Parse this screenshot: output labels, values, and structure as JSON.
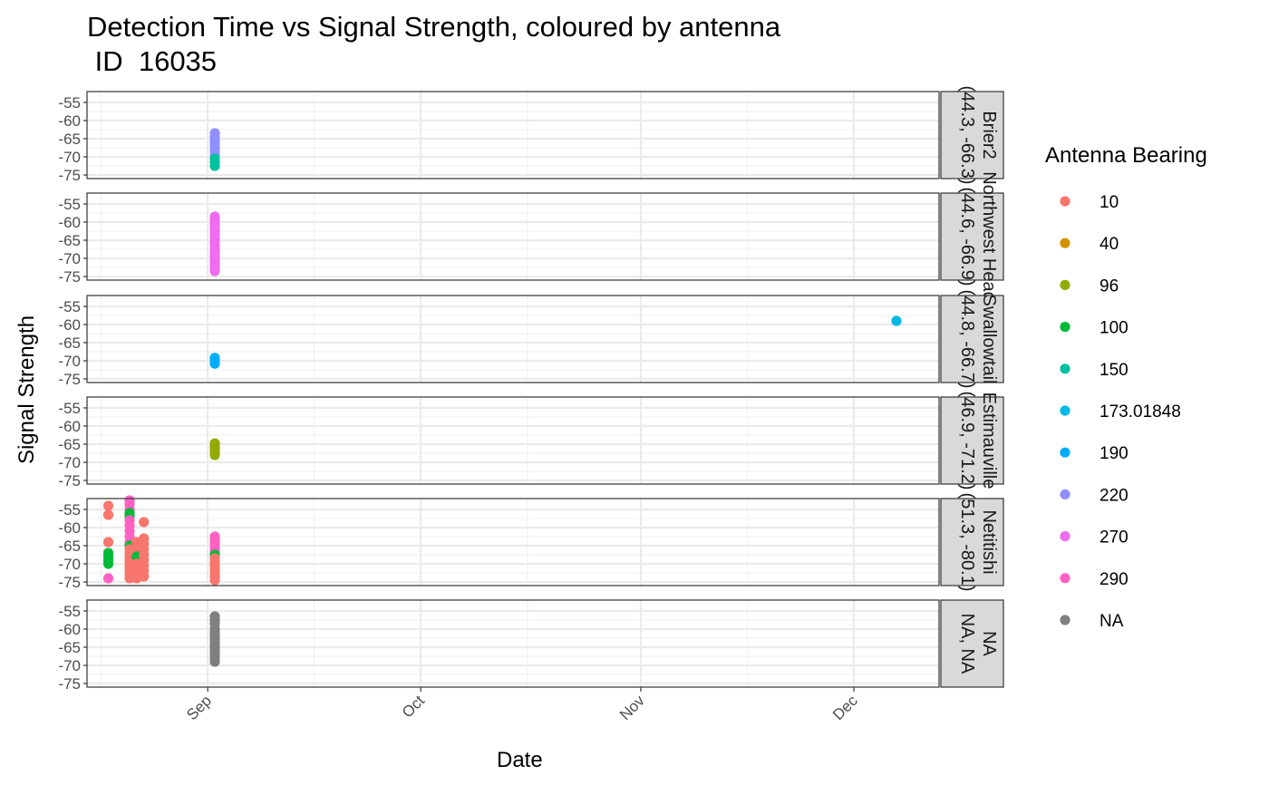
{
  "chart_data": {
    "type": "scatter",
    "title": "Detection Time vs Signal Strength, coloured by antenna",
    "subtitle": " ID  16035",
    "xlabel": "Date",
    "ylabel": "Signal Strength",
    "x_ticks": [
      {
        "label": "Sep",
        "date": "2023-09-01"
      },
      {
        "label": "Oct",
        "date": "2023-10-01"
      },
      {
        "label": "Nov",
        "date": "2023-11-01"
      },
      {
        "label": "Dec",
        "date": "2023-12-01"
      }
    ],
    "xlim": [
      "2023-08-15",
      "2023-12-13"
    ],
    "y_ticks": [
      -55,
      -60,
      -65,
      -70,
      -75
    ],
    "ylim": [
      -76,
      -52
    ],
    "grid": true,
    "legend": {
      "title": "Antenna Bearing",
      "position": "right",
      "entries": [
        {
          "label": "10",
          "color": "#F8766D"
        },
        {
          "label": "40",
          "color": "#D39200"
        },
        {
          "label": "96",
          "color": "#93AA00"
        },
        {
          "label": "100",
          "color": "#00BA38"
        },
        {
          "label": "150",
          "color": "#00C19F"
        },
        {
          "label": "173.01848",
          "color": "#00B9E3"
        },
        {
          "label": "190",
          "color": "#00ADFA"
        },
        {
          "label": "220",
          "color": "#8F8FFF"
        },
        {
          "label": "270",
          "color": "#EF6BF0"
        },
        {
          "label": "290",
          "color": "#FF61C3"
        },
        {
          "label": "NA",
          "color": "#7F7F7F"
        }
      ]
    },
    "panels": [
      {
        "strip": [
          "Brier2",
          "(44.3, -66.3)"
        ],
        "points": [
          {
            "date": "2023-09-02",
            "y": -63.5,
            "antenna": "220"
          },
          {
            "date": "2023-09-02",
            "y": -64.5,
            "antenna": "220"
          },
          {
            "date": "2023-09-02",
            "y": -65.5,
            "antenna": "220"
          },
          {
            "date": "2023-09-02",
            "y": -66.5,
            "antenna": "220"
          },
          {
            "date": "2023-09-02",
            "y": -67.5,
            "antenna": "220"
          },
          {
            "date": "2023-09-02",
            "y": -68.5,
            "antenna": "220"
          },
          {
            "date": "2023-09-02",
            "y": -69.5,
            "antenna": "220"
          },
          {
            "date": "2023-09-02",
            "y": -70.5,
            "antenna": "150"
          },
          {
            "date": "2023-09-02",
            "y": -71.5,
            "antenna": "150"
          },
          {
            "date": "2023-09-02",
            "y": -72.5,
            "antenna": "150"
          }
        ]
      },
      {
        "strip": [
          "Northwest Head",
          "(44.6, -66.9)"
        ],
        "points": [
          {
            "date": "2023-09-02",
            "y": -58.5,
            "antenna": "270"
          },
          {
            "date": "2023-09-02",
            "y": -59.5,
            "antenna": "270"
          },
          {
            "date": "2023-09-02",
            "y": -60.5,
            "antenna": "270"
          },
          {
            "date": "2023-09-02",
            "y": -61.5,
            "antenna": "270"
          },
          {
            "date": "2023-09-02",
            "y": -62.5,
            "antenna": "270"
          },
          {
            "date": "2023-09-02",
            "y": -63.5,
            "antenna": "270"
          },
          {
            "date": "2023-09-02",
            "y": -64.5,
            "antenna": "270"
          },
          {
            "date": "2023-09-02",
            "y": -65.5,
            "antenna": "270"
          },
          {
            "date": "2023-09-02",
            "y": -66.5,
            "antenna": "270"
          },
          {
            "date": "2023-09-02",
            "y": -67.5,
            "antenna": "270"
          },
          {
            "date": "2023-09-02",
            "y": -68.5,
            "antenna": "270"
          },
          {
            "date": "2023-09-02",
            "y": -69.5,
            "antenna": "270"
          },
          {
            "date": "2023-09-02",
            "y": -70.5,
            "antenna": "270"
          },
          {
            "date": "2023-09-02",
            "y": -71.5,
            "antenna": "270"
          },
          {
            "date": "2023-09-02",
            "y": -72.5,
            "antenna": "270"
          },
          {
            "date": "2023-09-02",
            "y": -73.5,
            "antenna": "270"
          }
        ]
      },
      {
        "strip": [
          "Swallowtail",
          "(44.8, -66.7)"
        ],
        "points": [
          {
            "date": "2023-09-02",
            "y": -69.2,
            "antenna": "190"
          },
          {
            "date": "2023-09-02",
            "y": -70.0,
            "antenna": "190"
          },
          {
            "date": "2023-09-02",
            "y": -70.8,
            "antenna": "190"
          },
          {
            "date": "2023-12-07",
            "y": -59.0,
            "antenna": "173.01848"
          }
        ]
      },
      {
        "strip": [
          "Estimauville",
          "(46.9, -71.2)"
        ],
        "points": [
          {
            "date": "2023-09-02",
            "y": -64.8,
            "antenna": "96"
          },
          {
            "date": "2023-09-02",
            "y": -65.6,
            "antenna": "96"
          },
          {
            "date": "2023-09-02",
            "y": -66.4,
            "antenna": "96"
          },
          {
            "date": "2023-09-02",
            "y": -67.2,
            "antenna": "96"
          },
          {
            "date": "2023-09-02",
            "y": -68.0,
            "antenna": "96"
          }
        ]
      },
      {
        "strip": [
          "Netitishi",
          "(51.3, -80.1)"
        ],
        "points": [
          {
            "date": "2023-08-18",
            "y": -54.0,
            "antenna": "10"
          },
          {
            "date": "2023-08-18",
            "y": -56.5,
            "antenna": "10"
          },
          {
            "date": "2023-08-18",
            "y": -64.0,
            "antenna": "10"
          },
          {
            "date": "2023-08-18",
            "y": -67.0,
            "antenna": "100"
          },
          {
            "date": "2023-08-18",
            "y": -68.0,
            "antenna": "100"
          },
          {
            "date": "2023-08-18",
            "y": -69.0,
            "antenna": "100"
          },
          {
            "date": "2023-08-18",
            "y": -70.0,
            "antenna": "100"
          },
          {
            "date": "2023-08-18",
            "y": -74.0,
            "antenna": "290"
          },
          {
            "date": "2023-08-21",
            "y": -52.5,
            "antenna": "290"
          },
          {
            "date": "2023-08-21",
            "y": -53.5,
            "antenna": "290"
          },
          {
            "date": "2023-08-21",
            "y": -55.0,
            "antenna": "290"
          },
          {
            "date": "2023-08-21",
            "y": -56.0,
            "antenna": "100"
          },
          {
            "date": "2023-08-21",
            "y": -57.0,
            "antenna": "100"
          },
          {
            "date": "2023-08-21",
            "y": -58.0,
            "antenna": "290"
          },
          {
            "date": "2023-08-21",
            "y": -59.5,
            "antenna": "290"
          },
          {
            "date": "2023-08-21",
            "y": -61.0,
            "antenna": "290"
          },
          {
            "date": "2023-08-21",
            "y": -62.5,
            "antenna": "290"
          },
          {
            "date": "2023-08-21",
            "y": -64.0,
            "antenna": "290"
          },
          {
            "date": "2023-08-21",
            "y": -65.0,
            "antenna": "100"
          },
          {
            "date": "2023-08-21",
            "y": -66.0,
            "antenna": "10"
          },
          {
            "date": "2023-08-21",
            "y": -67.0,
            "antenna": "10"
          },
          {
            "date": "2023-08-21",
            "y": -68.0,
            "antenna": "10"
          },
          {
            "date": "2023-08-21",
            "y": -69.0,
            "antenna": "10"
          },
          {
            "date": "2023-08-21",
            "y": -70.0,
            "antenna": "10"
          },
          {
            "date": "2023-08-21",
            "y": -71.0,
            "antenna": "10"
          },
          {
            "date": "2023-08-21",
            "y": -72.0,
            "antenna": "10"
          },
          {
            "date": "2023-08-21",
            "y": -73.0,
            "antenna": "10"
          },
          {
            "date": "2023-08-21",
            "y": -74.0,
            "antenna": "10"
          },
          {
            "date": "2023-08-22",
            "y": -64.0,
            "antenna": "10"
          },
          {
            "date": "2023-08-22",
            "y": -66.0,
            "antenna": "10"
          },
          {
            "date": "2023-08-22",
            "y": -68.0,
            "antenna": "100"
          },
          {
            "date": "2023-08-22",
            "y": -70.0,
            "antenna": "10"
          },
          {
            "date": "2023-08-22",
            "y": -72.0,
            "antenna": "10"
          },
          {
            "date": "2023-08-22",
            "y": -74.0,
            "antenna": "10"
          },
          {
            "date": "2023-08-23",
            "y": -58.5,
            "antenna": "10"
          },
          {
            "date": "2023-08-23",
            "y": -63.0,
            "antenna": "10"
          },
          {
            "date": "2023-08-23",
            "y": -64.5,
            "antenna": "10"
          },
          {
            "date": "2023-08-23",
            "y": -66.0,
            "antenna": "10"
          },
          {
            "date": "2023-08-23",
            "y": -67.5,
            "antenna": "10"
          },
          {
            "date": "2023-08-23",
            "y": -69.0,
            "antenna": "10"
          },
          {
            "date": "2023-08-23",
            "y": -70.5,
            "antenna": "10"
          },
          {
            "date": "2023-08-23",
            "y": -72.0,
            "antenna": "10"
          },
          {
            "date": "2023-08-23",
            "y": -73.5,
            "antenna": "10"
          },
          {
            "date": "2023-09-02",
            "y": -62.5,
            "antenna": "290"
          },
          {
            "date": "2023-09-02",
            "y": -63.5,
            "antenna": "290"
          },
          {
            "date": "2023-09-02",
            "y": -64.5,
            "antenna": "290"
          },
          {
            "date": "2023-09-02",
            "y": -65.5,
            "antenna": "290"
          },
          {
            "date": "2023-09-02",
            "y": -66.5,
            "antenna": "290"
          },
          {
            "date": "2023-09-02",
            "y": -67.5,
            "antenna": "100"
          },
          {
            "date": "2023-09-02",
            "y": -68.5,
            "antenna": "10"
          },
          {
            "date": "2023-09-02",
            "y": -69.5,
            "antenna": "10"
          },
          {
            "date": "2023-09-02",
            "y": -70.5,
            "antenna": "10"
          },
          {
            "date": "2023-09-02",
            "y": -71.5,
            "antenna": "10"
          },
          {
            "date": "2023-09-02",
            "y": -72.5,
            "antenna": "10"
          },
          {
            "date": "2023-09-02",
            "y": -73.5,
            "antenna": "10"
          },
          {
            "date": "2023-09-02",
            "y": -74.5,
            "antenna": "10"
          }
        ]
      },
      {
        "strip": [
          "NA",
          "NA, NA"
        ],
        "points": [
          {
            "date": "2023-09-02",
            "y": -56.5,
            "antenna": "NA"
          },
          {
            "date": "2023-09-02",
            "y": -57.5,
            "antenna": "NA"
          },
          {
            "date": "2023-09-02",
            "y": -58.5,
            "antenna": "NA"
          },
          {
            "date": "2023-09-02",
            "y": -60.0,
            "antenna": "NA"
          },
          {
            "date": "2023-09-02",
            "y": -61.0,
            "antenna": "NA"
          },
          {
            "date": "2023-09-02",
            "y": -62.0,
            "antenna": "NA"
          },
          {
            "date": "2023-09-02",
            "y": -63.0,
            "antenna": "NA"
          },
          {
            "date": "2023-09-02",
            "y": -64.0,
            "antenna": "NA"
          },
          {
            "date": "2023-09-02",
            "y": -65.0,
            "antenna": "NA"
          },
          {
            "date": "2023-09-02",
            "y": -66.0,
            "antenna": "NA"
          },
          {
            "date": "2023-09-02",
            "y": -67.0,
            "antenna": "NA"
          },
          {
            "date": "2023-09-02",
            "y": -68.0,
            "antenna": "NA"
          },
          {
            "date": "2023-09-02",
            "y": -69.0,
            "antenna": "NA"
          }
        ]
      }
    ]
  }
}
